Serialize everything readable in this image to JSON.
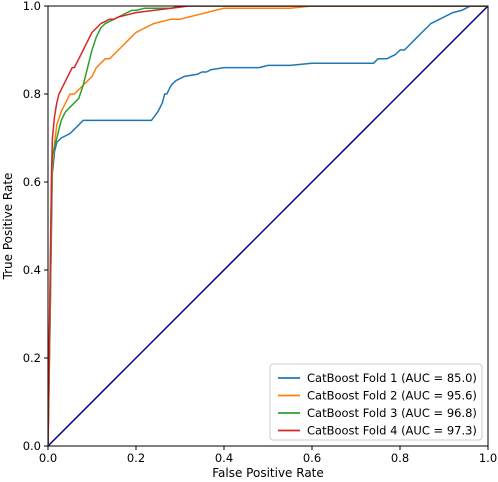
{
  "chart_data": {
    "type": "line",
    "title": "",
    "xlabel": "False Positive Rate",
    "ylabel": "True Positive Rate",
    "xlim": [
      0,
      1
    ],
    "ylim": [
      0,
      1
    ],
    "xticks": [
      "0.0",
      "0.2",
      "0.4",
      "0.6",
      "0.8",
      "1.0"
    ],
    "yticks": [
      "0.0",
      "0.2",
      "0.4",
      "0.6",
      "0.8",
      "1.0"
    ],
    "grid": false,
    "legend_position": "bottom-right",
    "diagonal": {
      "x": [
        0,
        1
      ],
      "y": [
        0,
        1
      ],
      "color": "#00008b"
    },
    "series": [
      {
        "name": "CatBoost Fold 1 (AUC = 85.0)",
        "color": "#1f77b4",
        "x": [
          0,
          0.005,
          0.008,
          0.01,
          0.015,
          0.02,
          0.03,
          0.05,
          0.06,
          0.07,
          0.08,
          0.09,
          0.12,
          0.15,
          0.18,
          0.2,
          0.22,
          0.235,
          0.25,
          0.26,
          0.265,
          0.27,
          0.275,
          0.28,
          0.29,
          0.3,
          0.31,
          0.34,
          0.35,
          0.36,
          0.37,
          0.4,
          0.42,
          0.45,
          0.48,
          0.5,
          0.55,
          0.6,
          0.65,
          0.7,
          0.74,
          0.75,
          0.77,
          0.78,
          0.79,
          0.8,
          0.81,
          0.82,
          0.83,
          0.84,
          0.85,
          0.86,
          0.87,
          0.88,
          0.89,
          0.9,
          0.91,
          0.92,
          0.94,
          0.96,
          1.0
        ],
        "y": [
          0,
          0.3,
          0.5,
          0.62,
          0.67,
          0.69,
          0.7,
          0.71,
          0.72,
          0.73,
          0.74,
          0.74,
          0.74,
          0.74,
          0.74,
          0.74,
          0.74,
          0.74,
          0.76,
          0.78,
          0.8,
          0.8,
          0.81,
          0.82,
          0.83,
          0.835,
          0.84,
          0.845,
          0.85,
          0.85,
          0.855,
          0.86,
          0.86,
          0.86,
          0.86,
          0.865,
          0.865,
          0.87,
          0.87,
          0.87,
          0.87,
          0.88,
          0.88,
          0.885,
          0.89,
          0.9,
          0.9,
          0.91,
          0.92,
          0.93,
          0.94,
          0.95,
          0.96,
          0.965,
          0.97,
          0.975,
          0.98,
          0.985,
          0.99,
          1.0,
          1.0
        ]
      },
      {
        "name": "CatBoost Fold 2 (AUC = 95.6)",
        "color": "#ff7f0e",
        "x": [
          0,
          0.005,
          0.008,
          0.01,
          0.015,
          0.02,
          0.03,
          0.04,
          0.05,
          0.06,
          0.07,
          0.08,
          0.09,
          0.1,
          0.11,
          0.12,
          0.13,
          0.14,
          0.15,
          0.16,
          0.17,
          0.18,
          0.19,
          0.2,
          0.22,
          0.24,
          0.26,
          0.28,
          0.3,
          0.32,
          0.34,
          0.36,
          0.38,
          0.4,
          0.45,
          0.5,
          0.55,
          0.6,
          1.0
        ],
        "y": [
          0,
          0.3,
          0.55,
          0.64,
          0.69,
          0.73,
          0.76,
          0.78,
          0.8,
          0.8,
          0.81,
          0.82,
          0.83,
          0.84,
          0.86,
          0.87,
          0.88,
          0.88,
          0.89,
          0.9,
          0.91,
          0.92,
          0.93,
          0.94,
          0.95,
          0.96,
          0.965,
          0.97,
          0.97,
          0.975,
          0.98,
          0.985,
          0.99,
          0.995,
          0.995,
          0.995,
          0.995,
          1.0,
          1.0
        ]
      },
      {
        "name": "CatBoost Fold 3 (AUC = 96.8)",
        "color": "#2ca02c",
        "x": [
          0,
          0.005,
          0.008,
          0.01,
          0.015,
          0.02,
          0.025,
          0.03,
          0.035,
          0.04,
          0.05,
          0.06,
          0.07,
          0.08,
          0.09,
          0.1,
          0.11,
          0.12,
          0.13,
          0.14,
          0.15,
          0.16,
          0.17,
          0.18,
          0.19,
          0.2,
          0.22,
          0.24,
          0.26,
          0.28,
          0.3,
          0.32,
          0.34,
          1.0
        ],
        "y": [
          0,
          0.35,
          0.6,
          0.66,
          0.68,
          0.7,
          0.72,
          0.74,
          0.75,
          0.76,
          0.77,
          0.78,
          0.79,
          0.82,
          0.86,
          0.9,
          0.93,
          0.95,
          0.96,
          0.965,
          0.97,
          0.975,
          0.98,
          0.985,
          0.99,
          0.99,
          0.995,
          0.995,
          0.995,
          0.995,
          1.0,
          1.0,
          1.0,
          1.0
        ]
      },
      {
        "name": "CatBoost Fold 4 (AUC = 97.3)",
        "color": "#d62728",
        "x": [
          0,
          0.005,
          0.008,
          0.01,
          0.015,
          0.02,
          0.025,
          0.03,
          0.035,
          0.04,
          0.045,
          0.05,
          0.055,
          0.06,
          0.065,
          0.07,
          0.075,
          0.08,
          0.085,
          0.09,
          0.1,
          0.11,
          0.12,
          0.13,
          0.14,
          0.15,
          0.16,
          0.18,
          0.2,
          0.24,
          0.28,
          0.32,
          0.35,
          1.0
        ],
        "y": [
          0,
          0.4,
          0.62,
          0.7,
          0.75,
          0.78,
          0.8,
          0.81,
          0.82,
          0.83,
          0.84,
          0.85,
          0.86,
          0.86,
          0.87,
          0.88,
          0.89,
          0.9,
          0.91,
          0.92,
          0.94,
          0.95,
          0.96,
          0.965,
          0.97,
          0.97,
          0.975,
          0.98,
          0.985,
          0.99,
          0.995,
          1.0,
          1.0,
          1.0
        ]
      }
    ]
  }
}
